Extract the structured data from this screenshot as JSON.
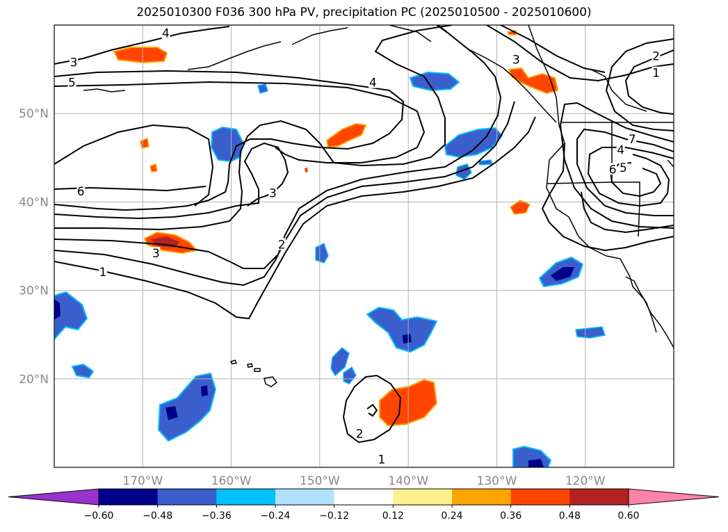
{
  "title": "2025010300 F036 300 hPa PV, precipitation PC (2025010500 - 2025010600)",
  "map": {
    "lon_range": [
      -180,
      -110
    ],
    "lat_range": [
      10,
      60
    ],
    "lon_ticks": [
      {
        "value": -170,
        "label": "170°W"
      },
      {
        "value": -160,
        "label": "160°W"
      },
      {
        "value": -150,
        "label": "150°W"
      },
      {
        "value": -140,
        "label": "140°W"
      },
      {
        "value": -130,
        "label": "130°W"
      },
      {
        "value": -120,
        "label": "120°W"
      }
    ],
    "lat_ticks": [
      {
        "value": 20,
        "label": "20°N"
      },
      {
        "value": 30,
        "label": "30°N"
      },
      {
        "value": 40,
        "label": "40°N"
      },
      {
        "value": 50,
        "label": "50°N"
      }
    ],
    "grid": true,
    "contour_color": "#000000",
    "contour_labels": [
      {
        "text": "4",
        "lon": -167.4,
        "lat": 59.1
      },
      {
        "text": "3",
        "lon": -177.8,
        "lat": 55.8
      },
      {
        "text": "5",
        "lon": -178.0,
        "lat": 53.5
      },
      {
        "text": "4",
        "lon": -144.0,
        "lat": 53.5
      },
      {
        "text": "3",
        "lon": -127.8,
        "lat": 56.1
      },
      {
        "text": "2",
        "lon": -112.0,
        "lat": 56.5
      },
      {
        "text": "1",
        "lon": -112.0,
        "lat": 54.6
      },
      {
        "text": "6",
        "lon": -177.0,
        "lat": 41.2
      },
      {
        "text": "3",
        "lon": -155.3,
        "lat": 41.0
      },
      {
        "text": "3",
        "lon": -168.5,
        "lat": 34.2
      },
      {
        "text": "1",
        "lon": -174.5,
        "lat": 32.1
      },
      {
        "text": "2",
        "lon": -154.3,
        "lat": 35.2
      },
      {
        "text": "7",
        "lon": -114.7,
        "lat": 47.1
      },
      {
        "text": "4",
        "lon": -116.0,
        "lat": 45.9
      },
      {
        "text": "6",
        "lon": -116.9,
        "lat": 43.7
      },
      {
        "text": "5",
        "lon": -115.7,
        "lat": 43.9
      },
      {
        "text": "2",
        "lon": -145.5,
        "lat": 13.8
      },
      {
        "text": "1",
        "lon": -143.0,
        "lat": 10.9
      }
    ]
  },
  "colorbar": {
    "colors": [
      "#9a32cd",
      "#00008b",
      "#3a5fcd",
      "#00bfff",
      "#b0e2ff",
      "#ffffff",
      "#fff08f",
      "#ffa500",
      "#ff4500",
      "#b22222",
      "#ff82ab"
    ],
    "tick_labels": [
      "−0.60",
      "−0.48",
      "−0.36",
      "−0.24",
      "−0.12",
      "0.12",
      "0.24",
      "0.36",
      "0.48",
      "0.60"
    ]
  },
  "legend_colors": {
    "neg_strong": "#00008b",
    "neg_mid": "#3a5fcd",
    "neg_edge": "#00bfff",
    "pos_mid": "#ff4500",
    "pos_strong": "#b22222",
    "pos_edge": "#ffa500"
  }
}
